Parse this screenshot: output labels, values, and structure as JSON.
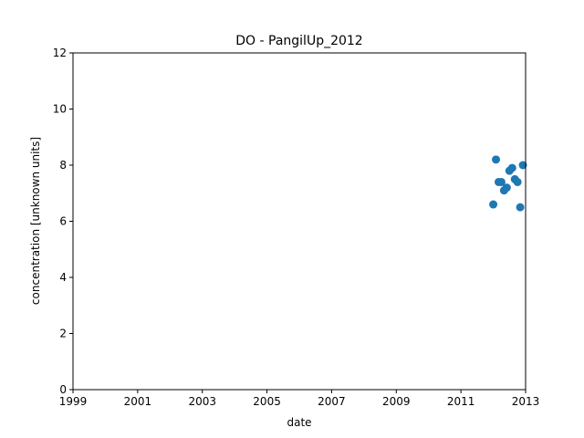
{
  "chart_data": {
    "type": "scatter",
    "title": "DO - PangilUp_2012",
    "xlabel": "date",
    "ylabel": "concentration [unknown units]",
    "xlim": [
      1999,
      2013
    ],
    "ylim": [
      0,
      12
    ],
    "x_ticks": [
      "1999",
      "2001",
      "2003",
      "2005",
      "2007",
      "2009",
      "2011",
      "2013"
    ],
    "y_ticks": [
      "0",
      "2",
      "4",
      "6",
      "8",
      "10",
      "12"
    ],
    "grid": false,
    "marker_color": "#1f77b4",
    "points": [
      {
        "x": "2012-01",
        "y": 6.6
      },
      {
        "x": "2012-02",
        "y": 8.2
      },
      {
        "x": "2012-03",
        "y": 7.4
      },
      {
        "x": "2012-04",
        "y": 7.4
      },
      {
        "x": "2012-05",
        "y": 7.1
      },
      {
        "x": "2012-06",
        "y": 7.2
      },
      {
        "x": "2012-07",
        "y": 7.8
      },
      {
        "x": "2012-08",
        "y": 7.9
      },
      {
        "x": "2012-09",
        "y": 7.5
      },
      {
        "x": "2012-10",
        "y": 7.4
      },
      {
        "x": "2012-11",
        "y": 6.5
      },
      {
        "x": "2012-12",
        "y": 8.0
      }
    ]
  }
}
